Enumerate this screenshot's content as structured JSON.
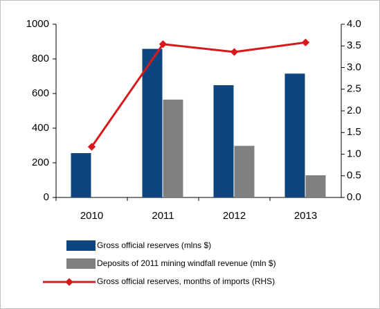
{
  "chart_data": {
    "type": "bar",
    "categories": [
      "2010",
      "2011",
      "2012",
      "2013"
    ],
    "series": [
      {
        "name": "Gross official reserves (mlns $)",
        "color": "#0e4580",
        "values": [
          256,
          858,
          648,
          715
        ]
      },
      {
        "name": "Deposits of 2011 mining windfall revenue (mln $)",
        "color": "#808080",
        "values": [
          null,
          565,
          298,
          128
        ]
      },
      {
        "name": "Gross official reserves, months of imports (RHS)",
        "type": "line",
        "axis": "y2",
        "color": "#d7191c",
        "values": [
          1.17,
          3.54,
          3.36,
          3.58
        ]
      }
    ],
    "ylim": [
      0,
      1000
    ],
    "yticks": [
      0,
      200,
      400,
      600,
      800,
      1000
    ],
    "y2lim": [
      0,
      4
    ],
    "y2ticks": [
      {
        "value": 0,
        "label": "0.0"
      },
      {
        "value": 0.5,
        "label": "0.5"
      },
      {
        "value": 1,
        "label": "1.0"
      },
      {
        "value": 1.5,
        "label": "1.5"
      },
      {
        "value": 2,
        "label": "2.0"
      },
      {
        "value": 2.5,
        "label": "2.5"
      },
      {
        "value": 3,
        "label": "3.0"
      },
      {
        "value": 3.5,
        "label": "3.5"
      },
      {
        "value": 4,
        "label": "4.0"
      }
    ]
  }
}
